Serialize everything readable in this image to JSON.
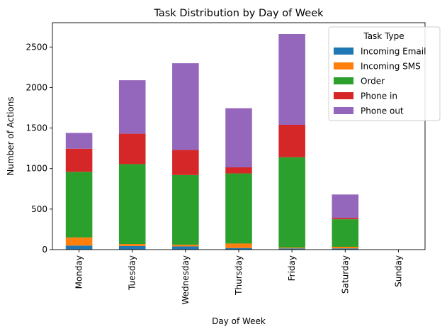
{
  "chart_data": {
    "type": "bar",
    "stacked": true,
    "title": "Task Distribution by Day of Week",
    "xlabel": "Day of Week",
    "ylabel": "Number of Actions",
    "categories": [
      "Monday",
      "Tuesday",
      "Wednesday",
      "Thursday",
      "Friday",
      "Saturday",
      "Sunday"
    ],
    "ylim": [
      0,
      2800
    ],
    "yticks": [
      0,
      500,
      1000,
      1500,
      2000,
      2500
    ],
    "legend": {
      "title": "Task Type",
      "placement": "top-right"
    },
    "grid": false,
    "series": [
      {
        "name": "Incoming Email",
        "color": "#1f77b4",
        "values": [
          50,
          45,
          40,
          20,
          15,
          15,
          0
        ]
      },
      {
        "name": "Incoming SMS",
        "color": "#ff7f0e",
        "values": [
          100,
          25,
          20,
          55,
          10,
          20,
          0
        ]
      },
      {
        "name": "Order",
        "color": "#2ca02c",
        "values": [
          810,
          985,
          860,
          865,
          1115,
          340,
          0
        ]
      },
      {
        "name": "Phone in",
        "color": "#d62728",
        "values": [
          285,
          375,
          310,
          75,
          400,
          15,
          0
        ]
      },
      {
        "name": "Phone out",
        "color": "#9467bd",
        "values": [
          195,
          660,
          1070,
          730,
          1120,
          290,
          0
        ]
      }
    ]
  }
}
